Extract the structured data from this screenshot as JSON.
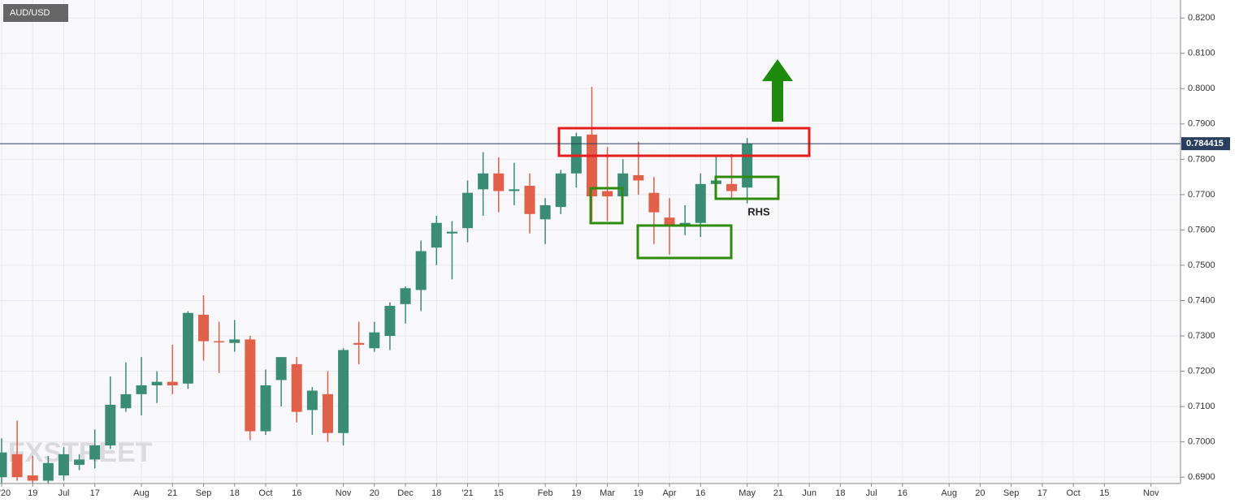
{
  "chart_data": {
    "type": "candlestick",
    "title": "AUD/USD",
    "watermark": "FXSTREET",
    "annotation": "RHS",
    "last_price": 0.784415,
    "up_color": "#3b8c75",
    "down_color": "#e0604a",
    "grid": true,
    "categories": [
      "'20",
      null,
      "19",
      null,
      "Jul",
      null,
      "17",
      null,
      null,
      "Aug",
      null,
      "21",
      null,
      "Sep",
      null,
      "18",
      null,
      "Oct",
      null,
      "16",
      null,
      null,
      "Nov",
      null,
      "20",
      null,
      "Dec",
      null,
      "18",
      null,
      "'21",
      null,
      "15",
      null,
      null,
      "Feb",
      null,
      "19",
      null,
      "Mar",
      null,
      "19",
      null,
      "Apr",
      null,
      "16",
      null,
      null,
      "May",
      null,
      "21",
      null,
      "Jun",
      null,
      "18",
      null,
      "Jul",
      null,
      "16",
      null,
      null,
      "Aug",
      null,
      "20",
      null,
      "Sep",
      null,
      "17",
      null,
      "Oct",
      null,
      "15",
      null,
      null,
      "Nov",
      null
    ],
    "open": [
      0.69,
      0.6965,
      0.6905,
      0.689,
      0.6905,
      0.6935,
      0.695,
      0.699,
      0.7095,
      0.7135,
      0.716,
      0.717,
      0.7165,
      0.736,
      0.7285,
      0.728,
      0.729,
      0.703,
      0.7175,
      0.722,
      0.709,
      0.7135,
      0.7025,
      0.728,
      0.7265,
      0.73,
      0.739,
      0.743,
      0.755,
      0.759,
      0.7605,
      0.7715,
      0.776,
      0.771,
      0.7725,
      0.763,
      0.7665,
      0.776,
      0.787,
      0.771,
      0.7695,
      0.7755,
      0.7705,
      0.7635,
      0.761,
      0.762,
      0.773,
      0.773,
      0.772,
      null,
      null,
      null,
      null,
      null,
      null,
      null,
      null,
      null,
      null,
      null,
      null,
      null,
      null,
      null,
      null,
      null,
      null,
      null,
      null,
      null,
      null,
      null,
      null,
      null,
      null,
      null
    ],
    "high": [
      0.701,
      0.706,
      0.696,
      0.696,
      0.6985,
      0.6965,
      0.7035,
      0.7185,
      0.7225,
      0.724,
      0.72,
      0.7275,
      0.737,
      0.7415,
      0.734,
      0.7345,
      0.73,
      0.7205,
      0.724,
      0.724,
      0.7155,
      0.72,
      0.7265,
      0.734,
      0.734,
      0.7395,
      0.744,
      0.757,
      0.764,
      0.7625,
      0.774,
      0.782,
      0.7805,
      0.779,
      0.776,
      0.769,
      0.777,
      0.7875,
      0.8005,
      0.7835,
      0.78,
      0.785,
      0.775,
      0.769,
      0.767,
      0.776,
      0.781,
      0.7815,
      0.786,
      null,
      null,
      null,
      null,
      null,
      null,
      null,
      null,
      null,
      null,
      null,
      null,
      null,
      null,
      null,
      null,
      null,
      null,
      null,
      null,
      null,
      null,
      null,
      null,
      null,
      null,
      null
    ],
    "low": [
      0.688,
      0.689,
      0.688,
      0.687,
      0.689,
      0.692,
      0.6925,
      0.698,
      0.7085,
      0.7075,
      0.711,
      0.7135,
      0.715,
      0.723,
      0.7195,
      0.7255,
      0.7005,
      0.702,
      0.71,
      0.7055,
      0.702,
      0.7,
      0.699,
      0.722,
      0.7255,
      0.726,
      0.7335,
      0.737,
      0.75,
      0.746,
      0.7565,
      0.764,
      0.765,
      0.767,
      0.759,
      0.756,
      0.7645,
      0.772,
      0.7625,
      0.7625,
      0.762,
      0.77,
      0.756,
      0.753,
      0.7585,
      0.758,
      0.773,
      0.769,
      0.7675,
      null,
      null,
      null,
      null,
      null,
      null,
      null,
      null,
      null,
      null,
      null,
      null,
      null,
      null,
      null,
      null,
      null,
      null,
      null,
      null,
      null,
      null,
      null,
      null,
      null,
      null,
      null
    ],
    "close": [
      0.697,
      0.69,
      0.689,
      0.694,
      0.6965,
      0.695,
      0.699,
      0.7105,
      0.7135,
      0.716,
      0.717,
      0.716,
      0.7365,
      0.7285,
      0.7282,
      0.729,
      0.703,
      0.716,
      0.724,
      0.7085,
      0.7145,
      0.7025,
      0.726,
      0.7275,
      0.731,
      0.7385,
      0.7435,
      0.754,
      0.762,
      0.7595,
      0.7705,
      0.776,
      0.771,
      0.7715,
      0.7645,
      0.767,
      0.776,
      0.7865,
      0.7695,
      0.7695,
      0.776,
      0.774,
      0.765,
      0.7615,
      0.762,
      0.773,
      0.774,
      0.771,
      0.7844,
      null,
      null,
      null,
      null,
      null,
      null,
      null,
      null,
      null,
      null,
      null,
      null,
      null,
      null,
      null,
      null,
      null,
      null,
      null,
      null,
      null,
      null,
      null,
      null,
      null,
      null,
      null
    ],
    "ylim": [
      0.6882,
      0.8251
    ],
    "yticks": [
      {
        "value": 0.69,
        "label": "0.6900"
      },
      {
        "value": 0.7,
        "label": "0.7000"
      },
      {
        "value": 0.71,
        "label": "0.7100"
      },
      {
        "value": 0.72,
        "label": "0.7200"
      },
      {
        "value": 0.73,
        "label": "0.7300"
      },
      {
        "value": 0.74,
        "label": "0.7400"
      },
      {
        "value": 0.75,
        "label": "0.7500"
      },
      {
        "value": 0.76,
        "label": "0.7600"
      },
      {
        "value": 0.77,
        "label": "0.7700"
      },
      {
        "value": 0.78,
        "label": "0.7800"
      },
      {
        "value": 0.79,
        "label": "0.7900"
      },
      {
        "value": 0.8,
        "label": "0.8000"
      },
      {
        "value": 0.81,
        "label": "0.8100"
      },
      {
        "value": 0.82,
        "label": "0.8200"
      }
    ]
  }
}
